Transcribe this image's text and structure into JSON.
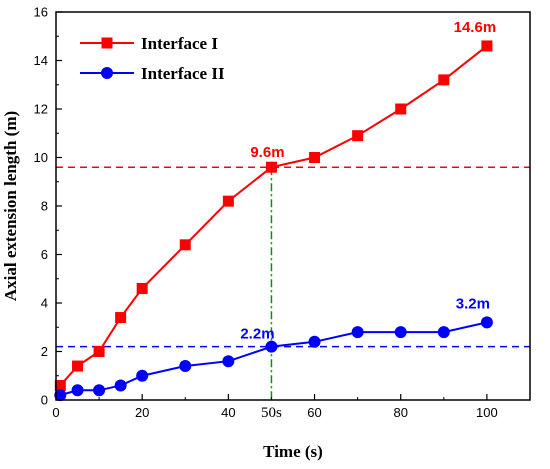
{
  "chart_data": {
    "type": "line",
    "xlabel": "Time (s)",
    "ylabel": "Axial extension length (m)",
    "xlim": [
      0,
      110
    ],
    "ylim": [
      0,
      16
    ],
    "xticks": [
      0,
      20,
      40,
      60,
      80,
      100
    ],
    "yticks": [
      0,
      2,
      4,
      6,
      8,
      10,
      12,
      14,
      16
    ],
    "grid": false,
    "legend_position": "top-left",
    "series": [
      {
        "name": "Interface I",
        "color": "#ff0000",
        "marker": "square",
        "x": [
          1,
          5,
          10,
          15,
          20,
          30,
          40,
          50,
          60,
          70,
          80,
          90,
          100
        ],
        "y": [
          0.6,
          1.4,
          2.0,
          3.4,
          4.6,
          6.4,
          8.2,
          9.6,
          10.0,
          10.9,
          12.0,
          13.2,
          14.6
        ]
      },
      {
        "name": "Interface II",
        "color": "#0000ff",
        "marker": "circle",
        "x": [
          1,
          5,
          10,
          15,
          20,
          30,
          40,
          50,
          60,
          70,
          80,
          90,
          100
        ],
        "y": [
          0.2,
          0.4,
          0.4,
          0.6,
          1.0,
          1.4,
          1.6,
          2.2,
          2.4,
          2.8,
          2.8,
          2.8,
          3.2
        ]
      }
    ],
    "reference_lines": [
      {
        "orientation": "horizontal",
        "value": 9.6,
        "color": "#ff0000",
        "style": "dashed"
      },
      {
        "orientation": "horizontal",
        "value": 2.2,
        "color": "#0000ff",
        "style": "dashed"
      },
      {
        "orientation": "vertical",
        "value": 50,
        "color": "#009900",
        "style": "dashdot",
        "label": "50s"
      }
    ],
    "annotations": [
      {
        "text": "14.6m",
        "x": 100,
        "y": 14.6,
        "color": "#ff0000"
      },
      {
        "text": "9.6m",
        "x": 50,
        "y": 9.6,
        "color": "#ff0000"
      },
      {
        "text": "2.2m",
        "x": 50,
        "y": 2.2,
        "color": "#0000ff"
      },
      {
        "text": "3.2m",
        "x": 100,
        "y": 3.2,
        "color": "#0000ff"
      }
    ]
  }
}
